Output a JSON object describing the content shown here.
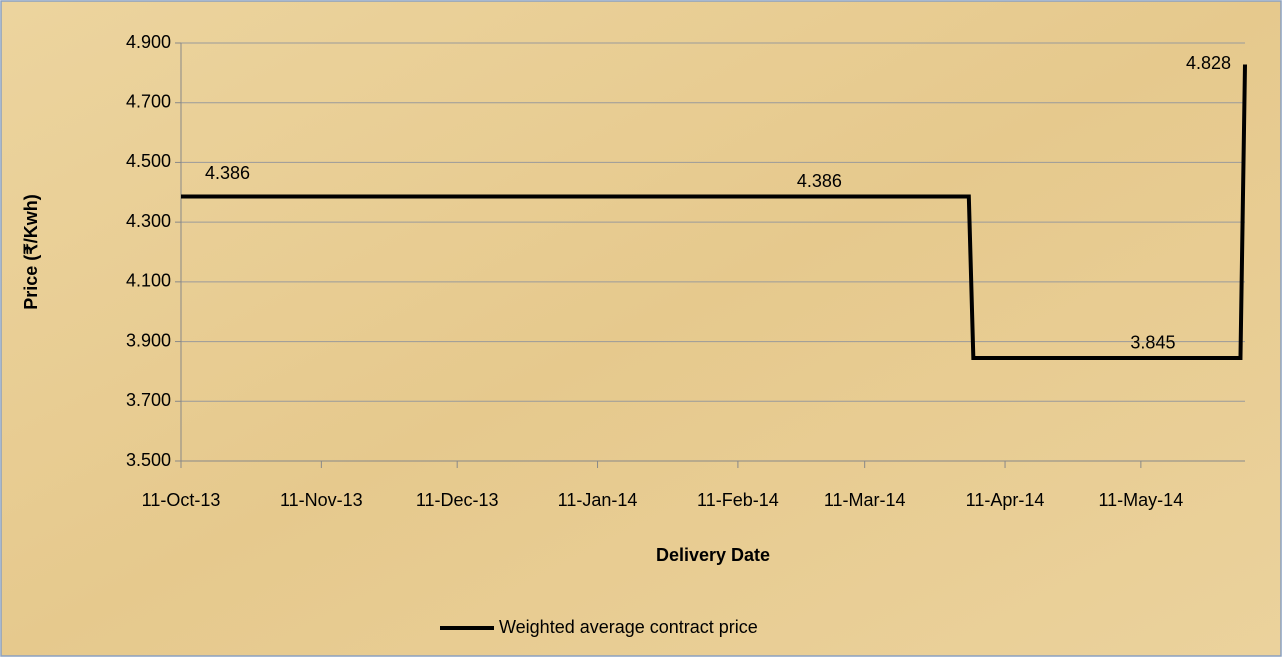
{
  "chart_data": {
    "type": "line",
    "x_label": "Delivery Date",
    "y_label": "Price (₹/Kwh)",
    "x": [
      "2013-10-11",
      "2014-03-01",
      "2014-04-03",
      "2014-04-04",
      "2014-06-02",
      "2014-06-03"
    ],
    "series": [
      {
        "name": "Weighted average contract price",
        "color": "#000000",
        "values": [
          4.386,
          4.386,
          4.386,
          3.845,
          3.845,
          4.828
        ],
        "value_labels": [
          "4.386",
          "4.386",
          null,
          null,
          "3.845",
          "4.828"
        ]
      }
    ],
    "xlim": [
      "2013-10-11",
      "2014-06-03"
    ],
    "xticks": [
      {
        "value": "2013-10-11",
        "label": "11-Oct-13"
      },
      {
        "value": "2013-11-11",
        "label": "11-Nov-13"
      },
      {
        "value": "2013-12-11",
        "label": "11-Dec-13"
      },
      {
        "value": "2014-01-11",
        "label": "11-Jan-14"
      },
      {
        "value": "2014-02-11",
        "label": "11-Feb-14"
      },
      {
        "value": "2014-03-11",
        "label": "11-Mar-14"
      },
      {
        "value": "2014-04-11",
        "label": "11-Apr-14"
      },
      {
        "value": "2014-05-11",
        "label": "11-May-14"
      }
    ],
    "ylim": [
      3.5,
      4.9
    ],
    "yticks": [
      {
        "value": 3.5,
        "label": "3.500"
      },
      {
        "value": 3.7,
        "label": "3.700"
      },
      {
        "value": 3.9,
        "label": "3.900"
      },
      {
        "value": 4.1,
        "label": "4.100"
      },
      {
        "value": 4.3,
        "label": "4.300"
      },
      {
        "value": 4.5,
        "label": "4.500"
      },
      {
        "value": 4.7,
        "label": "4.700"
      },
      {
        "value": 4.9,
        "label": "4.900"
      }
    ],
    "grid": true,
    "legend": "bottom"
  }
}
